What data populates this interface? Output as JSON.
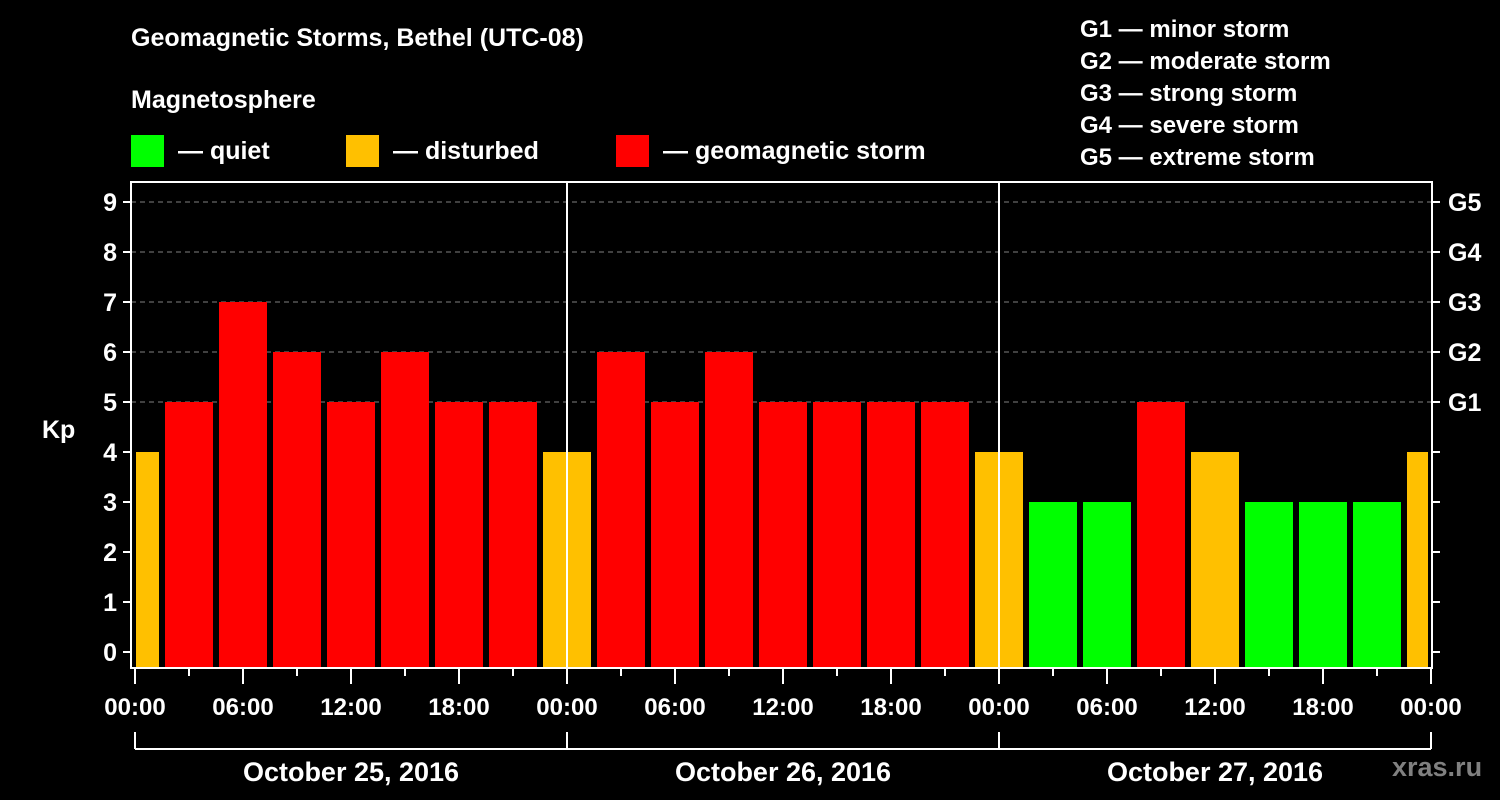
{
  "header": {
    "title": "Geomagnetic Storms, Bethel (UTC-08)",
    "subtitle": "Magnetosphere"
  },
  "legend": [
    {
      "label": "— quiet",
      "color": "#00ff00"
    },
    {
      "label": "— disturbed",
      "color": "#ffc000"
    },
    {
      "label": "— geomagnetic storm",
      "color": "#ff0000"
    }
  ],
  "storm_scale": [
    "G1 — minor storm",
    "G2 — moderate storm",
    "G3 — strong storm",
    "G4 — severe storm",
    "G5 — extreme storm"
  ],
  "watermark": "xras.ru",
  "colors": {
    "quiet": "#00ff00",
    "disturbed": "#ffc000",
    "storm": "#ff0000",
    "grid": "#808080",
    "axis": "#ffffff"
  },
  "chart_data": {
    "type": "bar",
    "title": "Geomagnetic Storms, Bethel (UTC-08)",
    "ylabel": "Kp",
    "xlabel": "",
    "ylim": [
      0,
      9
    ],
    "yticks": [
      0,
      1,
      2,
      3,
      4,
      5,
      6,
      7,
      8,
      9
    ],
    "right_axis_labels": [
      {
        "kp": 5,
        "label": "G1"
      },
      {
        "kp": 6,
        "label": "G2"
      },
      {
        "kp": 7,
        "label": "G3"
      },
      {
        "kp": 8,
        "label": "G4"
      },
      {
        "kp": 9,
        "label": "G5"
      }
    ],
    "grid": "dashed horizontal at Kp 5-9",
    "xtick_labels": [
      "00:00",
      "06:00",
      "12:00",
      "18:00",
      "00:00",
      "06:00",
      "12:00",
      "18:00",
      "00:00",
      "06:00",
      "12:00",
      "18:00",
      "00:00"
    ],
    "days": [
      "October 25, 2016",
      "October 26, 2016",
      "October 27, 2016"
    ],
    "interval_hours": 3,
    "bars": [
      {
        "start": "Oct 24 22:30",
        "kp": 4,
        "level": "disturbed",
        "partial": true
      },
      {
        "start": "Oct 25 01:30",
        "kp": 5,
        "level": "storm"
      },
      {
        "start": "Oct 25 04:30",
        "kp": 7,
        "level": "storm"
      },
      {
        "start": "Oct 25 07:30",
        "kp": 6,
        "level": "storm"
      },
      {
        "start": "Oct 25 10:30",
        "kp": 5,
        "level": "storm"
      },
      {
        "start": "Oct 25 13:30",
        "kp": 6,
        "level": "storm"
      },
      {
        "start": "Oct 25 16:30",
        "kp": 5,
        "level": "storm"
      },
      {
        "start": "Oct 25 19:30",
        "kp": 5,
        "level": "storm"
      },
      {
        "start": "Oct 25 22:30",
        "kp": 4,
        "level": "disturbed"
      },
      {
        "start": "Oct 26 01:30",
        "kp": 6,
        "level": "storm"
      },
      {
        "start": "Oct 26 04:30",
        "kp": 5,
        "level": "storm"
      },
      {
        "start": "Oct 26 07:30",
        "kp": 6,
        "level": "storm"
      },
      {
        "start": "Oct 26 10:30",
        "kp": 5,
        "level": "storm"
      },
      {
        "start": "Oct 26 13:30",
        "kp": 5,
        "level": "storm"
      },
      {
        "start": "Oct 26 16:30",
        "kp": 5,
        "level": "storm"
      },
      {
        "start": "Oct 26 19:30",
        "kp": 5,
        "level": "storm"
      },
      {
        "start": "Oct 26 22:30",
        "kp": 4,
        "level": "disturbed"
      },
      {
        "start": "Oct 27 01:30",
        "kp": 3,
        "level": "quiet"
      },
      {
        "start": "Oct 27 04:30",
        "kp": 3,
        "level": "quiet"
      },
      {
        "start": "Oct 27 07:30",
        "kp": 5,
        "level": "storm"
      },
      {
        "start": "Oct 27 10:30",
        "kp": 4,
        "level": "disturbed"
      },
      {
        "start": "Oct 27 13:30",
        "kp": 3,
        "level": "quiet"
      },
      {
        "start": "Oct 27 16:30",
        "kp": 3,
        "level": "quiet"
      },
      {
        "start": "Oct 27 19:30",
        "kp": 3,
        "level": "quiet"
      },
      {
        "start": "Oct 27 22:30",
        "kp": 4,
        "level": "disturbed",
        "partial": true
      }
    ]
  }
}
